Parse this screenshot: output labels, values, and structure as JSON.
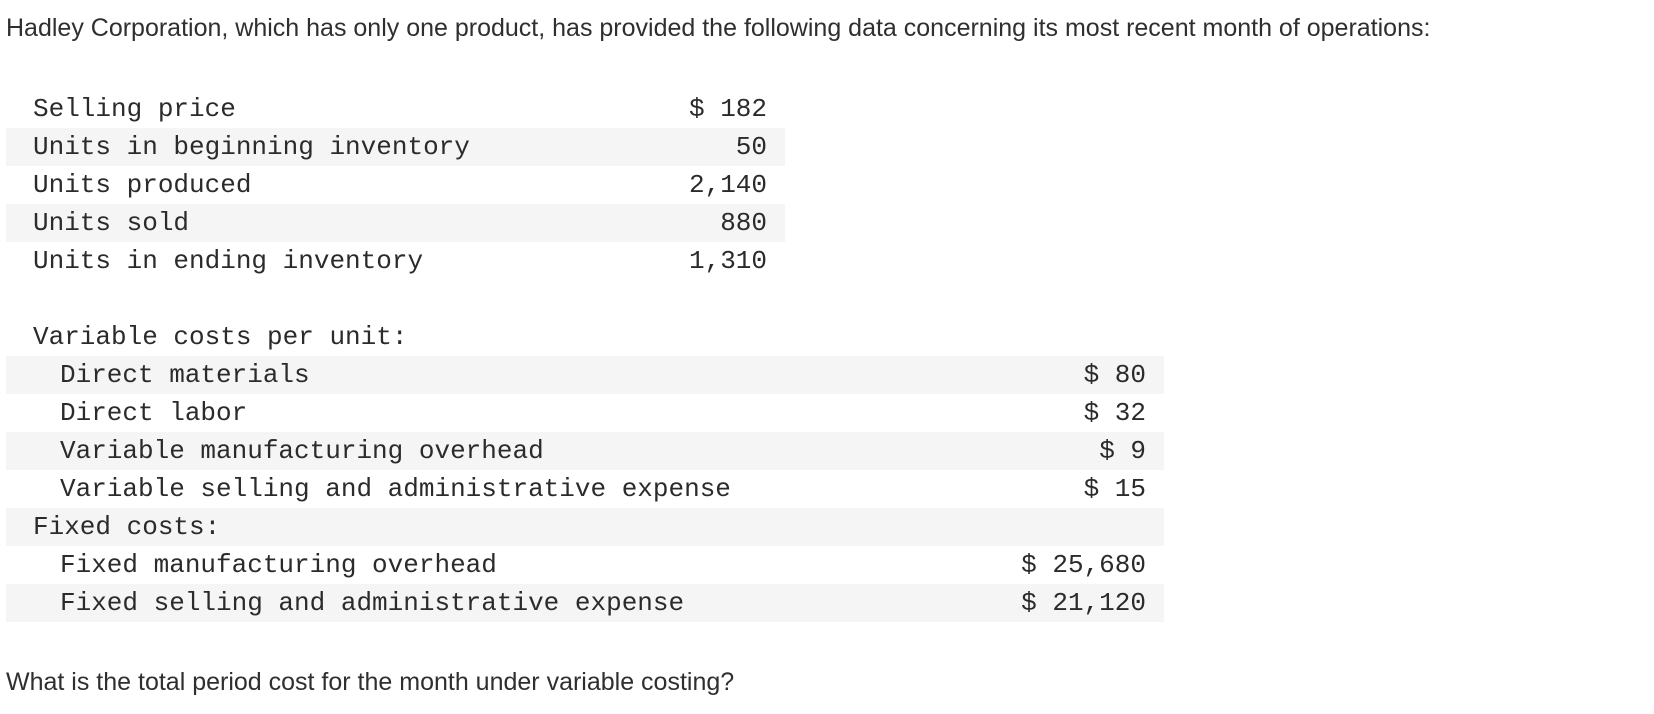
{
  "intro": "Hadley Corporation, which has only one product, has provided the following data concerning its most recent month of operations:",
  "operations": [
    {
      "label": "Selling price",
      "value": "$ 182"
    },
    {
      "label": "Units in beginning inventory",
      "value": "50"
    },
    {
      "label": "Units produced",
      "value": "2,140"
    },
    {
      "label": "Units sold",
      "value": "880"
    },
    {
      "label": "Units in ending inventory",
      "value": "1,310"
    }
  ],
  "variable_costs": {
    "heading": "Variable costs per unit:",
    "items": [
      {
        "label": "Direct materials",
        "value": "$ 80"
      },
      {
        "label": "Direct labor",
        "value": "$ 32"
      },
      {
        "label": "Variable manufacturing overhead",
        "value": "$ 9"
      },
      {
        "label": "Variable selling and administrative expense",
        "value": "$ 15"
      }
    ]
  },
  "fixed_costs": {
    "heading": "Fixed costs:",
    "items": [
      {
        "label": "Fixed manufacturing overhead",
        "value": "$ 25,680"
      },
      {
        "label": "Fixed selling and administrative expense",
        "value": "$ 21,120"
      }
    ]
  },
  "question": "What is the total period cost for the month under variable costing?"
}
